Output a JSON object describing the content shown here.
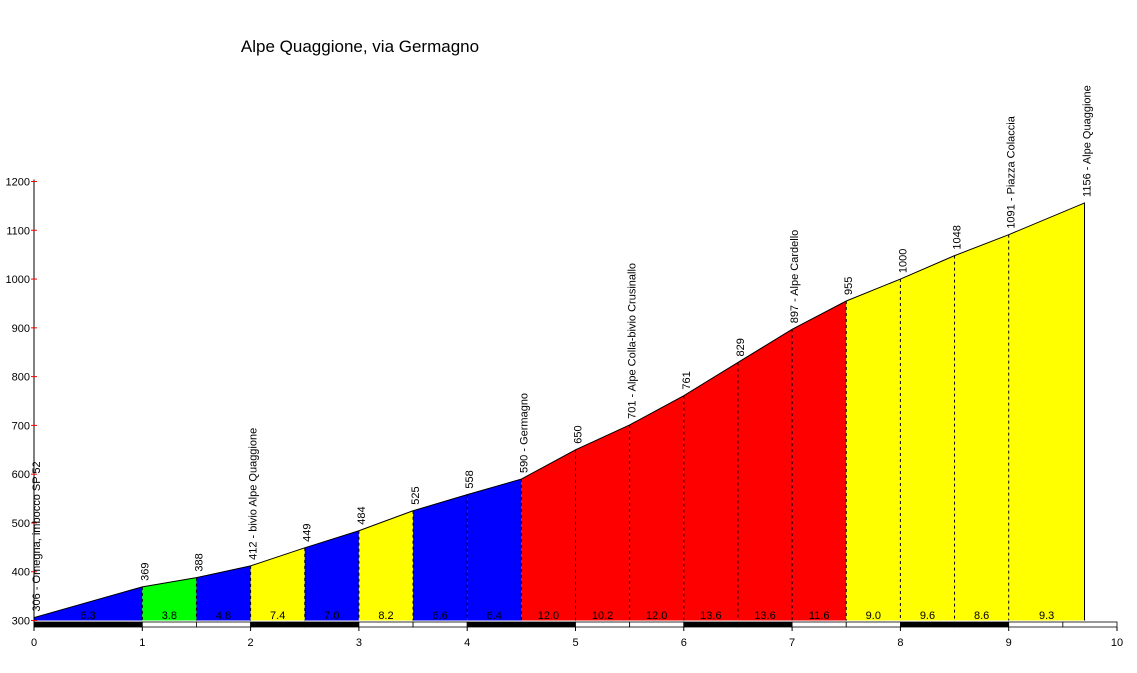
{
  "chart_data": {
    "type": "area",
    "title": "Alpe Quaggione, via Germagno",
    "xlabel": "",
    "ylabel": "",
    "xlim": [
      0,
      10
    ],
    "ylim": [
      300,
      1200
    ],
    "x_ticks": [
      "0",
      "1",
      "2",
      "3",
      "4",
      "5",
      "6",
      "7",
      "8",
      "9",
      "10"
    ],
    "y_ticks": [
      "300",
      "400",
      "500",
      "600",
      "700",
      "800",
      "900",
      "1000",
      "1100",
      "1200"
    ],
    "profile": [
      {
        "x": 0,
        "y": 306,
        "label": "306 - Omegna, imbocco SP 52"
      },
      {
        "x": 1,
        "y": 369,
        "label": "369"
      },
      {
        "x": 1.5,
        "y": 388,
        "label": "388"
      },
      {
        "x": 2,
        "y": 412,
        "label": "412 - bivio Alpe Quaggione"
      },
      {
        "x": 2.5,
        "y": 449,
        "label": "449"
      },
      {
        "x": 3,
        "y": 484,
        "label": "484"
      },
      {
        "x": 3.5,
        "y": 525,
        "label": "525"
      },
      {
        "x": 4,
        "y": 558,
        "label": "558"
      },
      {
        "x": 4.5,
        "y": 590,
        "label": "590 - Germagno"
      },
      {
        "x": 5,
        "y": 650,
        "label": "650"
      },
      {
        "x": 5.5,
        "y": 701,
        "label": "701 - Alpe Colla-bivio Crusinallo"
      },
      {
        "x": 6,
        "y": 761,
        "label": "761"
      },
      {
        "x": 6.5,
        "y": 829,
        "label": "829"
      },
      {
        "x": 7,
        "y": 897,
        "label": "897 - Alpe Cardello"
      },
      {
        "x": 7.5,
        "y": 955,
        "label": "955"
      },
      {
        "x": 8,
        "y": 1000,
        "label": "1000"
      },
      {
        "x": 8.5,
        "y": 1048,
        "label": "1048"
      },
      {
        "x": 9,
        "y": 1091,
        "label": "1091 - Piazza Colaccia"
      },
      {
        "x": 9.7,
        "y": 1156,
        "label": "1156 - Alpe Quaggione"
      }
    ],
    "segments": [
      {
        "from": 0,
        "to": 1,
        "gradient": "6.3",
        "color": "#0000ff"
      },
      {
        "from": 1,
        "to": 1.5,
        "gradient": "3.8",
        "color": "#00ff00"
      },
      {
        "from": 1.5,
        "to": 2,
        "gradient": "4.8",
        "color": "#0000ff"
      },
      {
        "from": 2,
        "to": 2.5,
        "gradient": "7.4",
        "color": "#ffff00"
      },
      {
        "from": 2.5,
        "to": 3,
        "gradient": "7.0",
        "color": "#0000ff"
      },
      {
        "from": 3,
        "to": 3.5,
        "gradient": "8.2",
        "color": "#ffff00"
      },
      {
        "from": 3.5,
        "to": 4,
        "gradient": "6.6",
        "color": "#0000ff"
      },
      {
        "from": 4,
        "to": 4.5,
        "gradient": "6.4",
        "color": "#0000ff"
      },
      {
        "from": 4.5,
        "to": 5,
        "gradient": "12.0",
        "color": "#ff0000"
      },
      {
        "from": 5,
        "to": 5.5,
        "gradient": "10.2",
        "color": "#ff0000"
      },
      {
        "from": 5.5,
        "to": 6,
        "gradient": "12.0",
        "color": "#ff0000"
      },
      {
        "from": 6,
        "to": 6.5,
        "gradient": "13.6",
        "color": "#ff0000"
      },
      {
        "from": 6.5,
        "to": 7,
        "gradient": "13.6",
        "color": "#ff0000"
      },
      {
        "from": 7,
        "to": 7.5,
        "gradient": "11.6",
        "color": "#ff0000"
      },
      {
        "from": 7.5,
        "to": 8,
        "gradient": "9.0",
        "color": "#ffff00"
      },
      {
        "from": 8,
        "to": 8.5,
        "gradient": "9.6",
        "color": "#ffff00"
      },
      {
        "from": 8.5,
        "to": 9,
        "gradient": "8.6",
        "color": "#ffff00"
      },
      {
        "from": 9,
        "to": 9.7,
        "gradient": "9.3",
        "color": "#ffff00"
      }
    ],
    "grid": false,
    "legend": "none"
  }
}
